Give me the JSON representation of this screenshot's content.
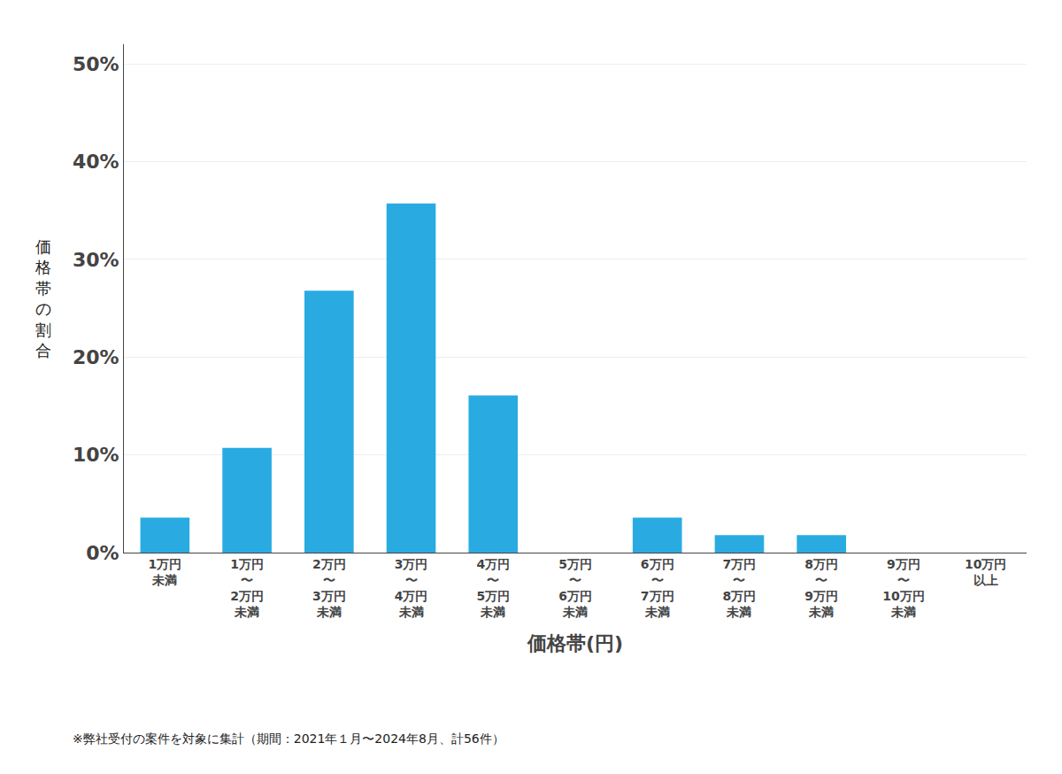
{
  "chart_data": {
    "type": "bar",
    "categories": [
      "1万円\n未満",
      "1万円\n〜\n2万円\n未満",
      "2万円\n〜\n3万円\n未満",
      "3万円\n〜\n4万円\n未満",
      "4万円\n〜\n5万円\n未満",
      "5万円\n〜\n6万円\n未満",
      "6万円\n〜\n7万円\n未満",
      "7万円\n〜\n8万円\n未満",
      "8万円\n〜\n9万円\n未満",
      "9万円\n〜\n10万円\n未満",
      "10万円\n以上"
    ],
    "values": [
      3.57,
      10.71,
      26.79,
      35.71,
      16.07,
      0.0,
      3.57,
      1.79,
      1.79,
      0.0,
      0.0
    ],
    "color": "#29ABE2",
    "ylabel": "価格帯の割合",
    "xlabel": "価格帯(円)",
    "footnote": "※弊社受付の案件を対象に集計（期間：2021年１月〜2024年8月、計56件）",
    "ylim": [
      0,
      52
    ],
    "yticks": [
      {
        "value": 0,
        "label": "0%"
      },
      {
        "value": 10,
        "label": "10%"
      },
      {
        "value": 20,
        "label": "20%"
      },
      {
        "value": 30,
        "label": "30%"
      },
      {
        "value": 40,
        "label": "40%"
      },
      {
        "value": 50,
        "label": "50%"
      }
    ],
    "grid": true
  }
}
